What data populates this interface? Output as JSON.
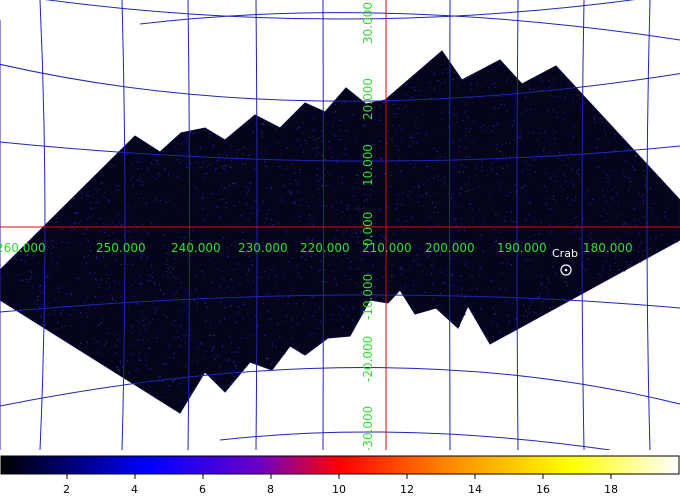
{
  "map": {
    "lon_labels": [
      "260.000",
      "250.000",
      "240.000",
      "230.000",
      "220.000",
      "210.000",
      "200.000",
      "190.000",
      "180.000"
    ],
    "lat_labels": [
      "30.000",
      "20.000",
      "10.000",
      "0.000",
      "-10.000",
      "-20.000",
      "-30.000"
    ],
    "source": {
      "name": "Crab"
    },
    "colors": {
      "grid": "#2222bb",
      "axis": "#ee0000",
      "labels": "#33dd33",
      "exposure": "#04041a"
    }
  },
  "colorbar": {
    "ticks": [
      "2",
      "4",
      "6",
      "8",
      "10",
      "12",
      "14",
      "16",
      "18"
    ],
    "stops": [
      "#000000",
      "#0000ff",
      "#6a00c8",
      "#ff0000",
      "#ff8800",
      "#ffff00",
      "#ffffff"
    ]
  }
}
